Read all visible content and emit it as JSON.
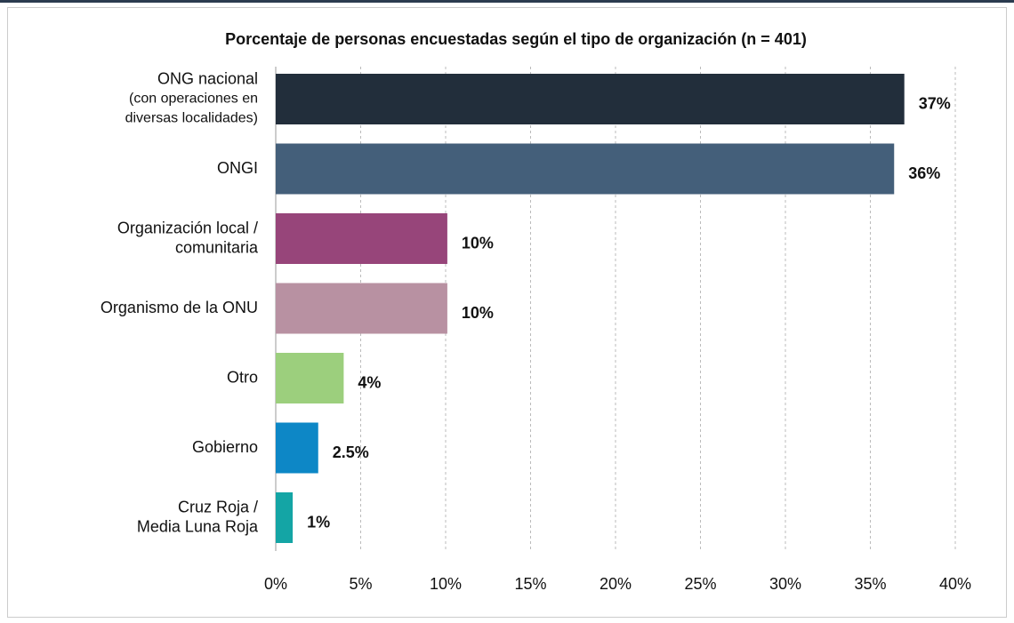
{
  "chart_data": {
    "type": "bar",
    "orientation": "horizontal",
    "title": "Porcentaje de personas encuestadas según el tipo de organización (n = 401)",
    "categories": [
      [
        "ONG nacional",
        "(con operaciones en",
        "diversas localidades)"
      ],
      [
        "ONGI"
      ],
      [
        "Organización local /",
        "comunitaria"
      ],
      [
        "Organismo de la ONU"
      ],
      [
        "Otro"
      ],
      [
        "Gobierno"
      ],
      [
        "Cruz Roja /",
        "Media Luna Roja"
      ]
    ],
    "values": [
      37,
      36.4,
      10.1,
      10.1,
      4,
      2.5,
      1
    ],
    "value_labels": [
      "37%",
      "36%",
      "10%",
      "10%",
      "4%",
      "2.5%",
      "1%"
    ],
    "colors": [
      "#222e3b",
      "#445f7a",
      "#97457a",
      "#b891a2",
      "#9ccf7d",
      "#0d87c6",
      "#14a5a5"
    ],
    "xlim": [
      0,
      40
    ],
    "xticks": [
      {
        "value": 0,
        "label": "0%"
      },
      {
        "value": 5,
        "label": "5%"
      },
      {
        "value": 10,
        "label": "10%"
      },
      {
        "value": 15,
        "label": "15%"
      },
      {
        "value": 20,
        "label": "20%"
      },
      {
        "value": 25,
        "label": "25%"
      },
      {
        "value": 30,
        "label": "30%"
      },
      {
        "value": 35,
        "label": "35%"
      },
      {
        "value": 40,
        "label": "40%"
      }
    ],
    "grid": true
  }
}
